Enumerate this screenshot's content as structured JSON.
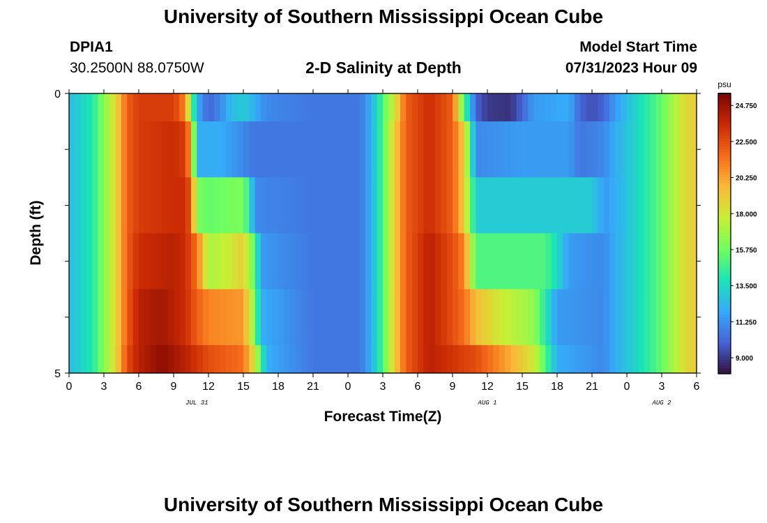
{
  "page": {
    "title_top": "University of Southern Mississippi Ocean Cube",
    "title_bottom": "University of Southern Mississippi Ocean Cube",
    "station": "DPIA1",
    "coords": "30.2500N  88.0750W",
    "model_start_label": "Model Start Time",
    "model_start_value": "07/31/2023 Hour 09"
  },
  "chart_data": {
    "type": "heatmap",
    "title": "2-D Salinity at Depth",
    "xlabel": "Forecast Time(Z)",
    "ylabel": "Depth (ft)",
    "x_tick_labels": [
      "0",
      "3",
      "6",
      "9",
      "12",
      "15",
      "18",
      "21",
      "0",
      "3",
      "6",
      "9",
      "12",
      "15",
      "18",
      "21",
      "0",
      "3",
      "6"
    ],
    "date_labels": [
      {
        "label": "JUL 31",
        "hour": 11
      },
      {
        "label": "AUG 1",
        "hour": 36
      },
      {
        "label": "AUG 2",
        "hour": 51
      }
    ],
    "x_range_hours": [
      0,
      54
    ],
    "y_tick_labels": [
      "0",
      "5"
    ],
    "y_range_ft": [
      0,
      5
    ],
    "colorbar": {
      "unit": "psu",
      "min": 8.0,
      "max": 25.5,
      "labels": [
        "24.750",
        "22.500",
        "20.250",
        "18.000",
        "15.750",
        "13.500",
        "11.250",
        "9.000"
      ],
      "colors": [
        "#30123b",
        "#4662d7",
        "#36aaf9",
        "#1ae4b6",
        "#72fe5e",
        "#c8ef34",
        "#faba39",
        "#f66b19",
        "#ca2a04",
        "#7a0403"
      ]
    },
    "depth_rows": [
      {
        "depth_ft": [
          0.0,
          0.5
        ],
        "keys": [
          [
            0,
            12.5
          ],
          [
            2,
            14
          ],
          [
            4,
            18.5
          ],
          [
            5,
            22
          ],
          [
            6,
            23
          ],
          [
            9,
            23
          ],
          [
            10,
            21
          ],
          [
            10.5,
            16
          ],
          [
            11,
            12
          ],
          [
            12,
            10
          ],
          [
            13,
            11
          ],
          [
            14,
            12.5
          ],
          [
            15,
            13
          ],
          [
            17,
            11
          ],
          [
            21,
            10.5
          ],
          [
            25,
            10.5
          ],
          [
            26,
            12
          ],
          [
            27,
            15
          ],
          [
            28,
            18
          ],
          [
            29,
            22
          ],
          [
            31,
            23.5
          ],
          [
            33,
            22
          ],
          [
            34,
            15
          ],
          [
            35,
            10
          ],
          [
            36,
            9
          ],
          [
            38,
            8.8
          ],
          [
            39,
            10
          ],
          [
            40,
            11.5
          ],
          [
            43,
            12
          ],
          [
            44,
            10
          ],
          [
            45,
            9.5
          ],
          [
            46,
            10
          ],
          [
            47,
            11.5
          ],
          [
            49,
            13.5
          ],
          [
            51,
            15.5
          ],
          [
            53,
            18.5
          ],
          [
            54,
            19
          ]
        ]
      },
      {
        "depth_ft": [
          0.5,
          1.5
        ],
        "keys": [
          [
            0,
            12.5
          ],
          [
            2,
            14
          ],
          [
            4,
            18.5
          ],
          [
            5,
            22
          ],
          [
            6,
            23
          ],
          [
            9,
            23.5
          ],
          [
            10,
            23
          ],
          [
            10.5,
            20
          ],
          [
            11,
            12
          ],
          [
            13,
            12
          ],
          [
            14,
            11.5
          ],
          [
            16,
            10.5
          ],
          [
            21,
            10.5
          ],
          [
            25,
            10.5
          ],
          [
            26,
            12
          ],
          [
            27,
            15
          ],
          [
            28,
            19
          ],
          [
            29,
            22
          ],
          [
            31,
            23.5
          ],
          [
            33,
            22
          ],
          [
            34,
            19
          ],
          [
            35,
            11
          ],
          [
            39,
            11.5
          ],
          [
            43,
            11.5
          ],
          [
            44,
            10.5
          ],
          [
            46,
            11
          ],
          [
            47,
            12
          ],
          [
            49,
            13.5
          ],
          [
            51,
            15.5
          ],
          [
            53,
            18.5
          ],
          [
            54,
            19
          ]
        ]
      },
      {
        "depth_ft": [
          1.5,
          2.5
        ],
        "keys": [
          [
            0,
            12.5
          ],
          [
            2,
            14
          ],
          [
            4,
            18.5
          ],
          [
            5,
            22
          ],
          [
            6,
            23
          ],
          [
            9,
            23.5
          ],
          [
            10,
            23.5
          ],
          [
            10.5,
            22
          ],
          [
            11,
            16
          ],
          [
            12,
            15.5
          ],
          [
            15,
            16
          ],
          [
            15.5,
            14
          ],
          [
            16,
            11
          ],
          [
            21,
            10.5
          ],
          [
            25,
            10.5
          ],
          [
            26,
            12
          ],
          [
            27,
            15
          ],
          [
            28,
            19
          ],
          [
            29,
            22
          ],
          [
            31,
            23.5
          ],
          [
            33,
            22
          ],
          [
            34,
            19
          ],
          [
            35,
            13
          ],
          [
            45,
            13
          ],
          [
            46,
            11.5
          ],
          [
            47,
            12
          ],
          [
            49,
            13.5
          ],
          [
            51,
            15.5
          ],
          [
            53,
            18.5
          ],
          [
            54,
            19
          ]
        ]
      },
      {
        "depth_ft": [
          2.5,
          3.5
        ],
        "keys": [
          [
            0,
            12.5
          ],
          [
            2,
            14
          ],
          [
            4,
            18.5
          ],
          [
            5,
            22
          ],
          [
            6,
            23.5
          ],
          [
            9,
            24
          ],
          [
            10,
            23.5
          ],
          [
            11,
            21.5
          ],
          [
            12,
            17
          ],
          [
            14,
            18
          ],
          [
            15,
            19
          ],
          [
            16,
            15
          ],
          [
            16.5,
            11.5
          ],
          [
            21,
            10.5
          ],
          [
            25,
            10.5
          ],
          [
            26,
            12
          ],
          [
            27,
            15
          ],
          [
            28,
            19
          ],
          [
            29,
            22
          ],
          [
            31,
            24
          ],
          [
            33,
            22.5
          ],
          [
            34,
            21
          ],
          [
            35,
            15
          ],
          [
            41,
            15
          ],
          [
            42,
            13.5
          ],
          [
            43,
            11.5
          ],
          [
            46,
            11
          ],
          [
            47,
            12
          ],
          [
            49,
            13.5
          ],
          [
            51,
            15.5
          ],
          [
            53,
            18.5
          ],
          [
            54,
            19
          ]
        ]
      },
      {
        "depth_ft": [
          3.5,
          4.5
        ],
        "keys": [
          [
            0,
            12.5
          ],
          [
            2,
            14
          ],
          [
            4,
            18.5
          ],
          [
            5,
            22
          ],
          [
            6,
            24
          ],
          [
            8,
            24.5
          ],
          [
            10,
            23.5
          ],
          [
            11,
            22
          ],
          [
            12,
            21
          ],
          [
            15,
            20.5
          ],
          [
            16,
            16
          ],
          [
            16.5,
            12
          ],
          [
            21,
            10.5
          ],
          [
            25,
            10.5
          ],
          [
            26,
            12
          ],
          [
            27,
            15
          ],
          [
            28,
            19
          ],
          [
            29,
            22
          ],
          [
            31,
            24
          ],
          [
            33,
            22.5
          ],
          [
            34,
            21.5
          ],
          [
            35,
            19.5
          ],
          [
            37,
            18
          ],
          [
            40,
            16.5
          ],
          [
            41,
            14
          ],
          [
            42,
            11.5
          ],
          [
            46,
            11
          ],
          [
            47,
            12
          ],
          [
            49,
            13.5
          ],
          [
            51,
            15.5
          ],
          [
            53,
            18.5
          ],
          [
            54,
            19
          ]
        ]
      },
      {
        "depth_ft": [
          4.5,
          5.0
        ],
        "keys": [
          [
            0,
            12.5
          ],
          [
            2,
            14
          ],
          [
            4,
            18.5
          ],
          [
            5,
            22.5
          ],
          [
            6,
            24
          ],
          [
            8,
            25
          ],
          [
            10,
            24
          ],
          [
            12,
            22.5
          ],
          [
            15,
            21.5
          ],
          [
            16,
            18
          ],
          [
            17,
            12
          ],
          [
            21,
            10.5
          ],
          [
            25,
            10.5
          ],
          [
            26,
            12
          ],
          [
            27,
            15
          ],
          [
            28,
            19
          ],
          [
            29,
            22
          ],
          [
            31,
            24
          ],
          [
            35,
            22.5
          ],
          [
            38,
            20
          ],
          [
            40,
            18
          ],
          [
            41,
            15
          ],
          [
            42,
            12
          ],
          [
            46,
            11
          ],
          [
            47,
            12
          ],
          [
            49,
            13.5
          ],
          [
            51,
            15.5
          ],
          [
            53,
            18.5
          ],
          [
            54,
            19
          ]
        ]
      }
    ]
  }
}
